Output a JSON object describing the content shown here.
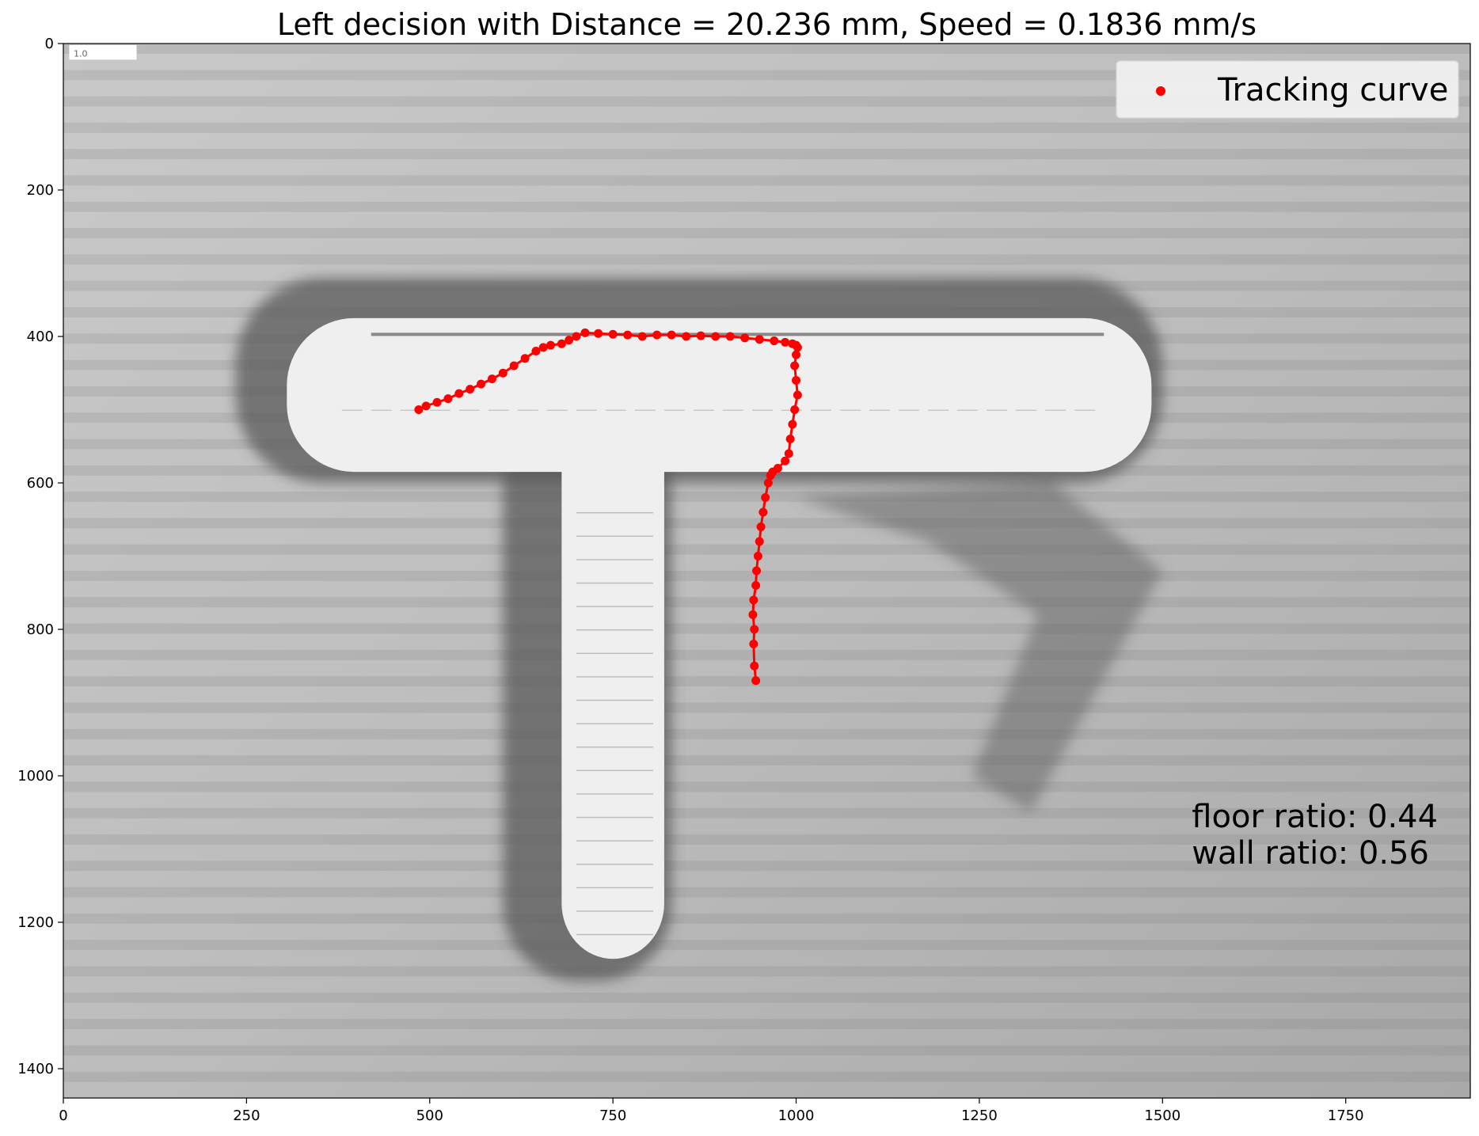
{
  "chart_data": {
    "type": "line",
    "title": "Left decision with Distance = 20.236 mm, Speed = 0.1836 mm/s",
    "xlabel": "",
    "ylabel": "",
    "xlim": [
      0,
      1920
    ],
    "ylim": [
      1440,
      0
    ],
    "y_inverted": true,
    "grid": false,
    "x_ticks": [
      0,
      250,
      500,
      750,
      1000,
      1250,
      1500,
      1750
    ],
    "y_ticks": [
      0,
      200,
      400,
      600,
      800,
      1000,
      1200,
      1400
    ],
    "background": "grayscale photograph of a T-shaped maze channel",
    "corner_tag": "1.0",
    "legend": {
      "placement": "top-right",
      "entries": [
        "Tracking curve"
      ]
    },
    "annotations": [
      "floor ratio: 0.44",
      "wall ratio: 0.56"
    ],
    "series": [
      {
        "name": "Tracking curve",
        "color": "#ff0000",
        "marker": "circle",
        "x": [
          945,
          943,
          942,
          943,
          941,
          942,
          945,
          946,
          948,
          950,
          952,
          955,
          958,
          962,
          965,
          968,
          975,
          985,
          990,
          992,
          995,
          998,
          1002,
          1000,
          998,
          1000,
          1002,
          1000,
          995,
          985,
          970,
          950,
          930,
          910,
          890,
          870,
          850,
          830,
          810,
          790,
          770,
          750,
          730,
          712,
          700,
          690,
          680,
          665,
          655,
          645,
          630,
          615,
          600,
          585,
          570,
          555,
          540,
          525,
          510,
          495,
          485
        ],
        "y": [
          870,
          850,
          820,
          800,
          780,
          760,
          740,
          720,
          700,
          680,
          660,
          640,
          620,
          600,
          590,
          585,
          580,
          570,
          560,
          540,
          520,
          500,
          480,
          460,
          440,
          425,
          415,
          412,
          410,
          408,
          406,
          404,
          402,
          400,
          400,
          399,
          400,
          398,
          398,
          400,
          398,
          397,
          396,
          395,
          400,
          405,
          410,
          412,
          415,
          420,
          430,
          440,
          450,
          458,
          465,
          472,
          478,
          485,
          490,
          495,
          500
        ]
      }
    ]
  }
}
